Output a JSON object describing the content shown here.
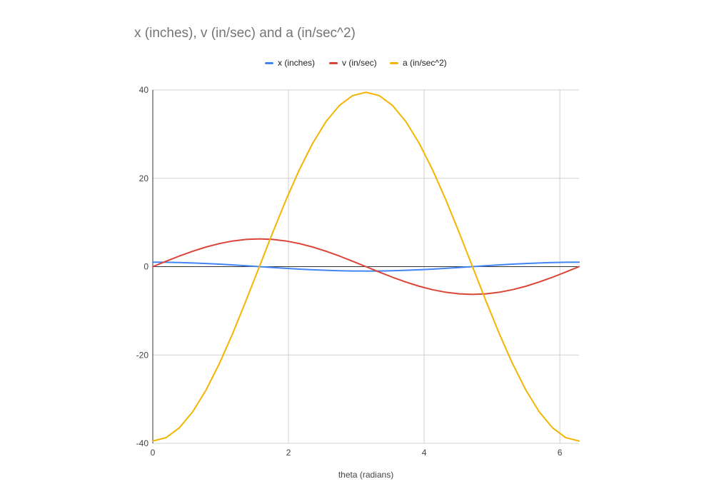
{
  "chart_data": {
    "type": "line",
    "title": "x (inches), v (in/sec) and a (in/sec^2)",
    "xlabel": "theta (radians)",
    "ylabel": "",
    "xlim": [
      0,
      6.283
    ],
    "ylim": [
      -40,
      40
    ],
    "x_ticks": [
      "0",
      "2",
      "4",
      "6"
    ],
    "y_ticks": [
      "40",
      "20",
      "0",
      "-20",
      "-40"
    ],
    "grid": true,
    "legend": "top",
    "x": [
      0,
      0.1963,
      0.3927,
      0.589,
      0.7854,
      0.9817,
      1.1781,
      1.3744,
      1.5708,
      1.7671,
      1.9635,
      2.1598,
      2.3562,
      2.5525,
      2.7489,
      2.9452,
      3.1416,
      3.3379,
      3.5343,
      3.7306,
      3.927,
      4.1233,
      4.3197,
      4.516,
      4.7124,
      4.9087,
      5.1051,
      5.3014,
      5.4978,
      5.6941,
      5.8905,
      6.0868,
      6.2832
    ],
    "series": [
      {
        "name": "x (inches)",
        "color": "#4285f4",
        "values": [
          1,
          0.981,
          0.924,
          0.831,
          0.707,
          0.556,
          0.383,
          0.195,
          0,
          -0.195,
          -0.383,
          -0.556,
          -0.707,
          -0.831,
          -0.924,
          -0.981,
          -1,
          -0.981,
          -0.924,
          -0.831,
          -0.707,
          -0.556,
          -0.383,
          -0.195,
          0,
          0.195,
          0.383,
          0.556,
          0.707,
          0.831,
          0.924,
          0.981,
          1
        ]
      },
      {
        "name": "v (in/sec)",
        "color": "#db4437",
        "values": [
          0,
          1.226,
          2.405,
          3.491,
          4.443,
          5.224,
          5.805,
          6.162,
          6.283,
          6.162,
          5.805,
          5.224,
          4.443,
          3.491,
          2.405,
          1.226,
          0,
          -1.226,
          -2.405,
          -3.491,
          -4.443,
          -5.224,
          -5.805,
          -6.162,
          -6.283,
          -6.162,
          -5.805,
          -5.224,
          -4.443,
          -3.491,
          -2.405,
          -1.226,
          0
        ]
      },
      {
        "name": "a (in/sec^2)",
        "color": "#f4b400",
        "values": [
          -39.48,
          -38.72,
          -36.47,
          -32.83,
          -27.92,
          -21.93,
          -15.11,
          -7.7,
          0,
          7.7,
          15.11,
          21.93,
          27.92,
          32.83,
          36.47,
          38.72,
          39.48,
          38.72,
          36.47,
          32.83,
          27.92,
          21.93,
          15.11,
          7.7,
          0,
          -7.7,
          -15.11,
          -21.93,
          -27.92,
          -32.83,
          -36.47,
          -38.72,
          -39.48
        ]
      }
    ]
  }
}
